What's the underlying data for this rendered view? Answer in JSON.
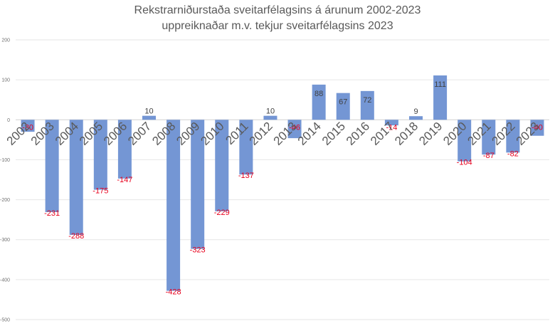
{
  "title_line_1": "Rekstrarniðurstaða sveitarfélagsins á árunum 2002-2023",
  "title_line_2": "uppreiknaðar m.v. tekjur sveitarfélagsins 2023",
  "colors": {
    "bar": "#7496d4",
    "positive_label": "#404040",
    "negative_label": "#e8001c",
    "grid": "#e6e6e6"
  },
  "chart_data": {
    "type": "bar",
    "title": "Rekstrarniðurstaða sveitarfélagsins á árunum 2002-2023 uppreiknaðar m.v. tekjur sveitarfélagsins 2023",
    "categories": [
      "2002",
      "2003",
      "2004",
      "2005",
      "2006",
      "2007",
      "2008",
      "2009",
      "2010",
      "2011",
      "2012",
      "2013",
      "2014",
      "2015",
      "2016",
      "2017",
      "2018",
      "2019",
      "2020",
      "2021",
      "2022",
      "2023"
    ],
    "values": [
      -30,
      -231,
      -288,
      -175,
      -147,
      10,
      -428,
      -323,
      -229,
      -137,
      10,
      -46,
      88,
      67,
      72,
      -14,
      9,
      111,
      -104,
      -87,
      -82,
      -40
    ],
    "yticks": [
      200,
      100,
      0,
      -100,
      -200,
      -300,
      -400,
      -500
    ],
    "ylim": [
      -500,
      200
    ],
    "xlabel": "",
    "ylabel": "",
    "grid": true,
    "legend": "none"
  }
}
